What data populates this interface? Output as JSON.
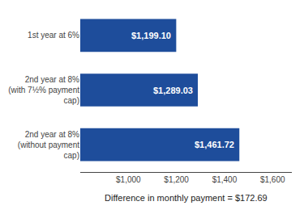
{
  "chart_data": {
    "type": "bar",
    "orientation": "horizontal",
    "categories": [
      "1st year at 6%",
      "2nd year at 8%\n(with 7½% payment\ncap)",
      "2nd year at 8%\n(without payment\ncap)"
    ],
    "values": [
      1199.1,
      1289.03,
      1461.72
    ],
    "value_labels": [
      "$1,199.10",
      "$1,289.03",
      "$1,461.72"
    ],
    "data_labels": true,
    "color": "#1e4d9b",
    "xlim": [
      800,
      1680
    ],
    "xticks": [
      {
        "value": 1000,
        "label": "$1,000"
      },
      {
        "value": 1200,
        "label": "$1,200"
      },
      {
        "value": 1400,
        "label": "$1,400"
      },
      {
        "value": 1600,
        "label": "$1,600"
      }
    ],
    "annotations": [
      "Difference in monthly payment = $172.69"
    ],
    "grid": false
  }
}
